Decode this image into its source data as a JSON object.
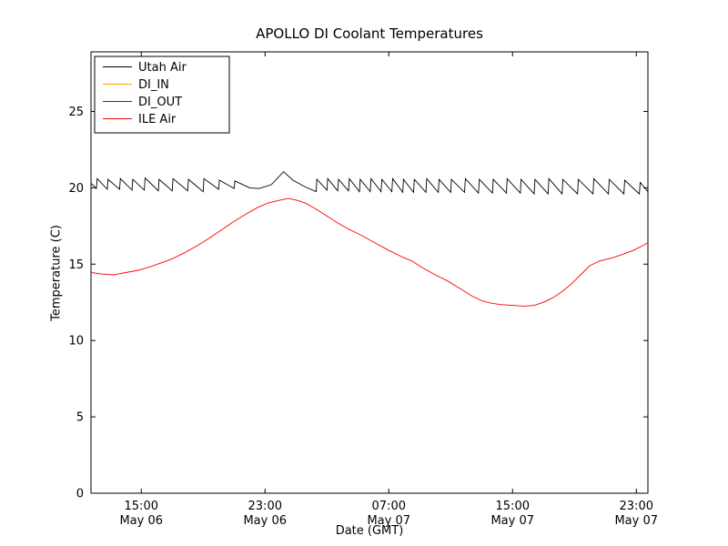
{
  "chart_data": {
    "type": "line",
    "title": "APOLLO DI Coolant Temperatures",
    "xlabel": "Date (GMT)",
    "ylabel": "Temperature (C)",
    "grid": false,
    "legend_position": "upper left",
    "x_unit": "hours from May 06 00:00",
    "xlim": [
      11.75,
      47.75
    ],
    "ylim": [
      0,
      28.9
    ],
    "yticks": [
      0,
      5,
      10,
      15,
      20,
      25
    ],
    "xticks": [
      {
        "hour": 15,
        "line1": "15:00",
        "line2": "May 06"
      },
      {
        "hour": 23,
        "line1": "23:00",
        "line2": "May 06"
      },
      {
        "hour": 31,
        "line1": "07:00",
        "line2": "May 07"
      },
      {
        "hour": 39,
        "line1": "15:00",
        "line2": "May 07"
      },
      {
        "hour": 47,
        "line1": "23:00",
        "line2": "May 07"
      }
    ],
    "series": [
      {
        "name": "Utah Air",
        "color": "#000000",
        "points": [
          [
            11.75,
            20.3
          ],
          [
            12.1,
            19.95
          ],
          [
            12.15,
            20.6
          ],
          [
            12.8,
            19.9
          ],
          [
            12.85,
            20.55
          ],
          [
            13.6,
            19.9
          ],
          [
            13.65,
            20.6
          ],
          [
            14.4,
            19.85
          ],
          [
            14.45,
            20.55
          ],
          [
            15.2,
            19.85
          ],
          [
            15.25,
            20.65
          ],
          [
            16.1,
            19.8
          ],
          [
            16.15,
            20.55
          ],
          [
            17.0,
            19.8
          ],
          [
            17.05,
            20.6
          ],
          [
            18.0,
            19.8
          ],
          [
            18.05,
            20.55
          ],
          [
            19.0,
            19.75
          ],
          [
            19.05,
            20.6
          ],
          [
            20.0,
            19.9
          ],
          [
            20.05,
            20.5
          ],
          [
            21.0,
            19.95
          ],
          [
            21.05,
            20.45
          ],
          [
            22.0,
            20.0
          ],
          [
            22.6,
            19.95
          ],
          [
            23.4,
            20.2
          ],
          [
            24.2,
            21.05
          ],
          [
            24.8,
            20.5
          ],
          [
            25.6,
            20.05
          ],
          [
            26.3,
            19.75
          ],
          [
            26.35,
            20.55
          ],
          [
            27.0,
            19.85
          ],
          [
            27.05,
            20.6
          ],
          [
            27.7,
            19.8
          ],
          [
            27.75,
            20.55
          ],
          [
            28.4,
            19.8
          ],
          [
            28.45,
            20.6
          ],
          [
            29.1,
            19.75
          ],
          [
            29.15,
            20.55
          ],
          [
            29.8,
            19.75
          ],
          [
            29.85,
            20.6
          ],
          [
            30.5,
            19.75
          ],
          [
            30.55,
            20.55
          ],
          [
            31.2,
            19.75
          ],
          [
            31.25,
            20.6
          ],
          [
            31.9,
            19.7
          ],
          [
            31.95,
            20.55
          ],
          [
            32.6,
            19.7
          ],
          [
            32.65,
            20.55
          ],
          [
            33.4,
            19.7
          ],
          [
            33.45,
            20.6
          ],
          [
            34.2,
            19.7
          ],
          [
            34.25,
            20.55
          ],
          [
            35.0,
            19.7
          ],
          [
            35.05,
            20.55
          ],
          [
            35.9,
            19.7
          ],
          [
            35.95,
            20.6
          ],
          [
            36.8,
            19.65
          ],
          [
            36.85,
            20.55
          ],
          [
            37.7,
            19.65
          ],
          [
            37.75,
            20.55
          ],
          [
            38.6,
            19.65
          ],
          [
            38.65,
            20.6
          ],
          [
            39.5,
            19.65
          ],
          [
            39.55,
            20.55
          ],
          [
            40.4,
            19.6
          ],
          [
            40.45,
            20.55
          ],
          [
            41.3,
            19.6
          ],
          [
            41.35,
            20.6
          ],
          [
            42.2,
            19.6
          ],
          [
            42.25,
            20.55
          ],
          [
            43.2,
            19.6
          ],
          [
            43.25,
            20.55
          ],
          [
            44.2,
            19.6
          ],
          [
            44.25,
            20.6
          ],
          [
            45.2,
            19.6
          ],
          [
            45.25,
            20.55
          ],
          [
            46.2,
            19.6
          ],
          [
            46.25,
            20.5
          ],
          [
            47.2,
            19.6
          ],
          [
            47.25,
            20.35
          ],
          [
            47.75,
            19.75
          ]
        ]
      },
      {
        "name": "DI_IN",
        "color": "#ffa500",
        "points": []
      },
      {
        "name": "DI_OUT",
        "color": "#800080",
        "points": []
      },
      {
        "name": "ILE Air",
        "color": "#ff0000",
        "points": [
          [
            11.75,
            14.45
          ],
          [
            12.5,
            14.35
          ],
          [
            13.2,
            14.3
          ],
          [
            14.0,
            14.45
          ],
          [
            14.8,
            14.6
          ],
          [
            15.5,
            14.8
          ],
          [
            16.2,
            15.05
          ],
          [
            17.0,
            15.35
          ],
          [
            17.8,
            15.75
          ],
          [
            18.6,
            16.2
          ],
          [
            19.4,
            16.7
          ],
          [
            20.2,
            17.25
          ],
          [
            21.0,
            17.8
          ],
          [
            21.8,
            18.3
          ],
          [
            22.5,
            18.7
          ],
          [
            23.2,
            19.0
          ],
          [
            24.0,
            19.2
          ],
          [
            24.5,
            19.3
          ],
          [
            25.0,
            19.2
          ],
          [
            25.6,
            19.0
          ],
          [
            26.3,
            18.6
          ],
          [
            27.0,
            18.15
          ],
          [
            27.7,
            17.7
          ],
          [
            28.4,
            17.3
          ],
          [
            29.1,
            16.95
          ],
          [
            30.0,
            16.45
          ],
          [
            31.0,
            15.9
          ],
          [
            31.8,
            15.5
          ],
          [
            32.5,
            15.2
          ],
          [
            33.2,
            14.75
          ],
          [
            34.0,
            14.3
          ],
          [
            34.8,
            13.9
          ],
          [
            35.6,
            13.4
          ],
          [
            36.4,
            12.9
          ],
          [
            37.0,
            12.6
          ],
          [
            37.6,
            12.45
          ],
          [
            38.2,
            12.35
          ],
          [
            39.0,
            12.3
          ],
          [
            39.8,
            12.25
          ],
          [
            40.4,
            12.3
          ],
          [
            41.0,
            12.5
          ],
          [
            41.6,
            12.8
          ],
          [
            42.2,
            13.2
          ],
          [
            42.8,
            13.7
          ],
          [
            43.4,
            14.3
          ],
          [
            44.0,
            14.9
          ],
          [
            44.6,
            15.2
          ],
          [
            45.4,
            15.4
          ],
          [
            46.0,
            15.6
          ],
          [
            46.8,
            15.9
          ],
          [
            47.4,
            16.2
          ],
          [
            47.75,
            16.4
          ]
        ]
      }
    ]
  }
}
